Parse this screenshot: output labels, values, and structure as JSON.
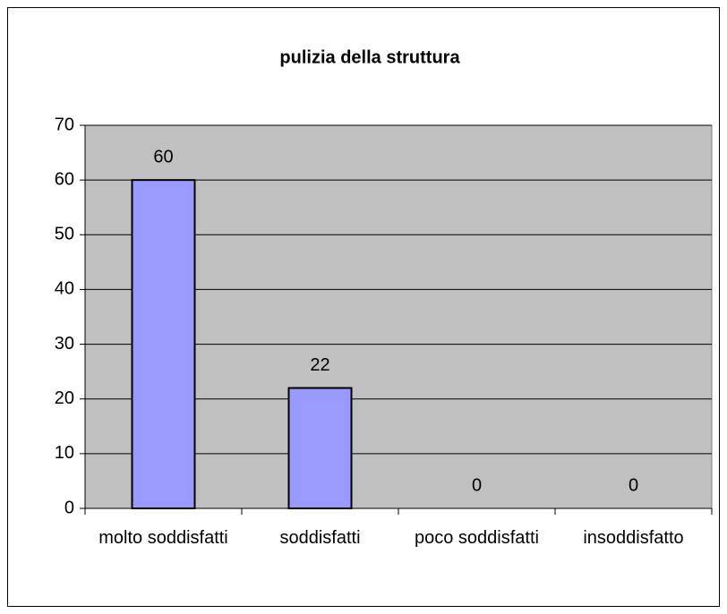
{
  "chart_data": {
    "type": "bar",
    "title": "pulizia della struttura",
    "categories": [
      "molto soddisfatti",
      "soddisfatti",
      "poco soddisfatti",
      "insoddisfatto"
    ],
    "values": [
      60,
      22,
      0,
      0
    ],
    "color": "#9999ff",
    "ylim": [
      0,
      70
    ],
    "yticks": [
      0,
      10,
      20,
      30,
      40,
      50,
      60,
      70
    ],
    "grid": true
  }
}
